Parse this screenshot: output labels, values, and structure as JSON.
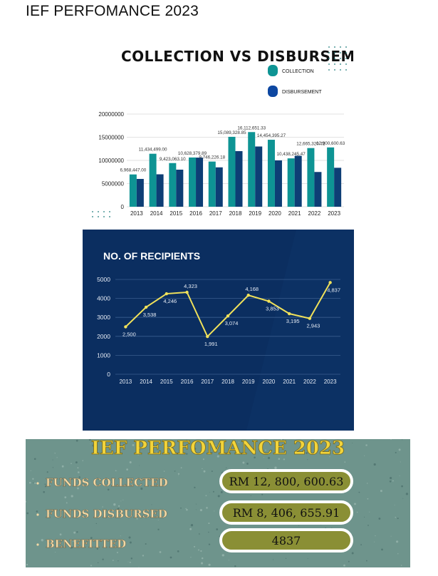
{
  "page_title": "IEF PERFOMANCE 2023",
  "chart_data": [
    {
      "type": "bar",
      "title": "COLLECTION VS DISBURSEMENT",
      "legend_position": "top-right",
      "categories": [
        "2013",
        "2014",
        "2015",
        "2016",
        "2017",
        "2018",
        "2019",
        "2020",
        "2021",
        "2022",
        "2023"
      ],
      "ylim": [
        0,
        20000000
      ],
      "yticks": [
        "0",
        "5000000",
        "10000000",
        "15000000",
        "20000000"
      ],
      "grid": true,
      "series": [
        {
          "name": "COLLECTION",
          "color": "#0e9494",
          "values": [
            6968447.0,
            11434499.0,
            9423063.1,
            10628379.89,
            9746226.18,
            15089328.85,
            16112651.33,
            14454395.27,
            10438245.47,
            12665320.72,
            12800600.63
          ],
          "labels": [
            "6,968,447.00",
            "11,434,499.00",
            "9,423,063.10",
            "10,628,379.89",
            "9,746,226.18",
            "15,089,328.85",
            "16,112,651.33",
            "14,454,395.27",
            "10,438,245.47",
            "12,665,320.72",
            "12,800,600.63"
          ]
        },
        {
          "name": "DISBURSEMENT",
          "color": "#0d3e75",
          "values": [
            6000000,
            7000000,
            8000000,
            10600000,
            8500000,
            12000000,
            13000000,
            10000000,
            11000000,
            7500000,
            8406655.91
          ]
        }
      ]
    },
    {
      "type": "line",
      "title": "NO. OF RECIPIENTS",
      "categories": [
        "2013",
        "2014",
        "2015",
        "2016",
        "2017",
        "2018",
        "2019",
        "2020",
        "2021",
        "2022",
        "2023"
      ],
      "ylim": [
        0,
        5000
      ],
      "yticks": [
        "0",
        "1000",
        "2000",
        "3000",
        "4000",
        "5000"
      ],
      "grid": true,
      "line_color": "#f0e15a",
      "values": [
        2500,
        3538,
        4246,
        4323,
        1991,
        3074,
        4168,
        3853,
        3195,
        2943,
        4837
      ],
      "labels": [
        "2,500",
        "3,538",
        "4,246",
        "4,323",
        "1,991",
        "3,074",
        "4,168",
        "3,853",
        "3,195",
        "2,943",
        "4,837"
      ]
    }
  ],
  "summary": {
    "title": "IEF PERFOMANCE 2023",
    "rows": [
      {
        "label": "FUNDS COLLECTED",
        "value": "RM 12, 800, 600.63"
      },
      {
        "label": "FUNDS DISBURSED",
        "value": "RM 8, 406, 655.91"
      },
      {
        "label": "BENEFITTED",
        "value": "4837"
      }
    ]
  },
  "colors": {
    "panel_bg": "#6e948c",
    "panel_title": "#f2d43b",
    "panel_label": "#f3d9a6",
    "pill_fill": "#8a8f35",
    "chart2_bg": "#0b2e60"
  }
}
